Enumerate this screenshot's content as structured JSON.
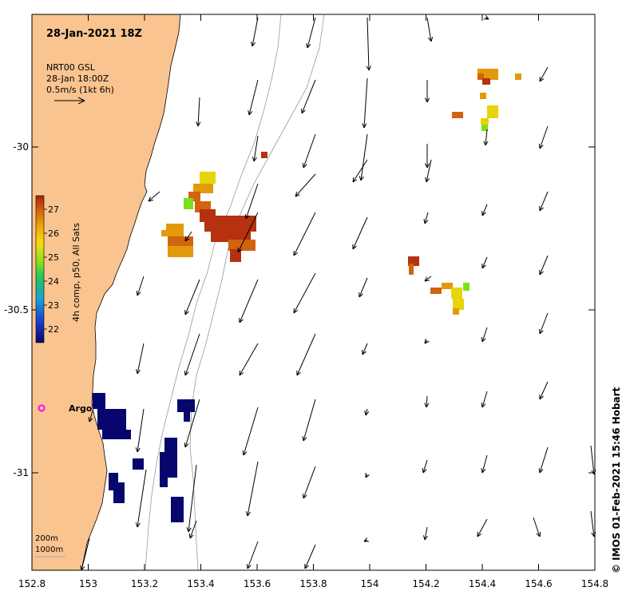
{
  "map": {
    "title": "28-Jan-2021 18Z",
    "legend": {
      "line1": "NRT00 GSL",
      "line2": "28-Jan 18:00Z",
      "line3": "0.5m/s (1kt 6h)"
    },
    "x_ticks": [
      "152.8",
      "153",
      "153.2",
      "153.4",
      "153.6",
      "153.8",
      "154",
      "154.2",
      "154.4",
      "154.6",
      "154.8"
    ],
    "y_ticks": [
      "-30",
      "-30.5",
      "-31"
    ],
    "colorbar": {
      "label": "4h comp, p50, All Sats",
      "ticks": [
        "27",
        "26",
        "25",
        "24",
        "23",
        "22"
      ]
    },
    "argo_label": "Argo",
    "depth_labels": [
      "200m",
      "1000m"
    ],
    "credit": "© IMOS 01-Feb-2021 15:46 Hobart",
    "colors": {
      "land": "#f9c490",
      "arrow": "#000000",
      "isobath": "#999999",
      "sst_dark_red": "#b5310f",
      "sst_orange": "#d2630f",
      "sst_amber": "#e39a0a",
      "sst_yellow": "#e8d40a",
      "sst_green": "#7ce01a",
      "cold_navy": "#06066e",
      "argo_marker": "#ff00ff"
    }
  }
}
